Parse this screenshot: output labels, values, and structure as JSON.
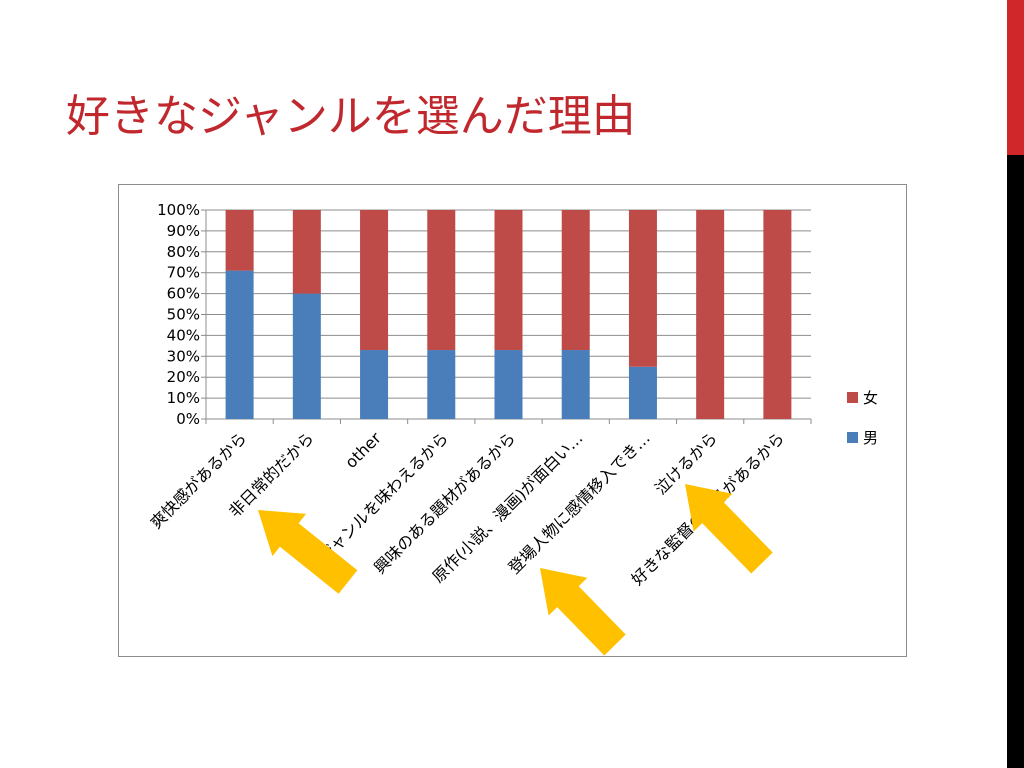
{
  "slide": {
    "title": "好きなジャンルを選んだ理由",
    "accent_color": "#d0282a",
    "sidebar_colors": [
      "#d0282a",
      "#000000"
    ]
  },
  "chart_data": {
    "type": "bar",
    "stacked": true,
    "percent": true,
    "categories": [
      "爽快感があるから",
      "非日常的だから",
      "other",
      "ジャンルを味わえるから",
      "興味のある題材があるから",
      "原作(小説、漫画)が面白い…",
      "登場人物に感情移入でき…",
      "泣けるから",
      "好きな監督の作品があるから"
    ],
    "series": [
      {
        "name": "男",
        "color": "#4a7ebb",
        "values": [
          71,
          60,
          33,
          33,
          33,
          33,
          25,
          0,
          0
        ]
      },
      {
        "name": "女",
        "color": "#be4b48",
        "values": [
          29,
          40,
          67,
          67,
          67,
          67,
          75,
          100,
          100
        ]
      }
    ],
    "yticks": [
      "0%",
      "10%",
      "20%",
      "30%",
      "40%",
      "50%",
      "60%",
      "70%",
      "80%",
      "90%",
      "100%"
    ],
    "ylim": [
      0,
      100
    ],
    "grid": true,
    "legend_position": "right",
    "annotations": [
      {
        "type": "arrow",
        "color": "#ffc000",
        "points_to": "非日常的だから"
      },
      {
        "type": "arrow",
        "color": "#ffc000",
        "points_to": "登場人物に感情移入でき…"
      },
      {
        "type": "arrow",
        "color": "#ffc000",
        "points_to": "泣けるから"
      }
    ]
  }
}
